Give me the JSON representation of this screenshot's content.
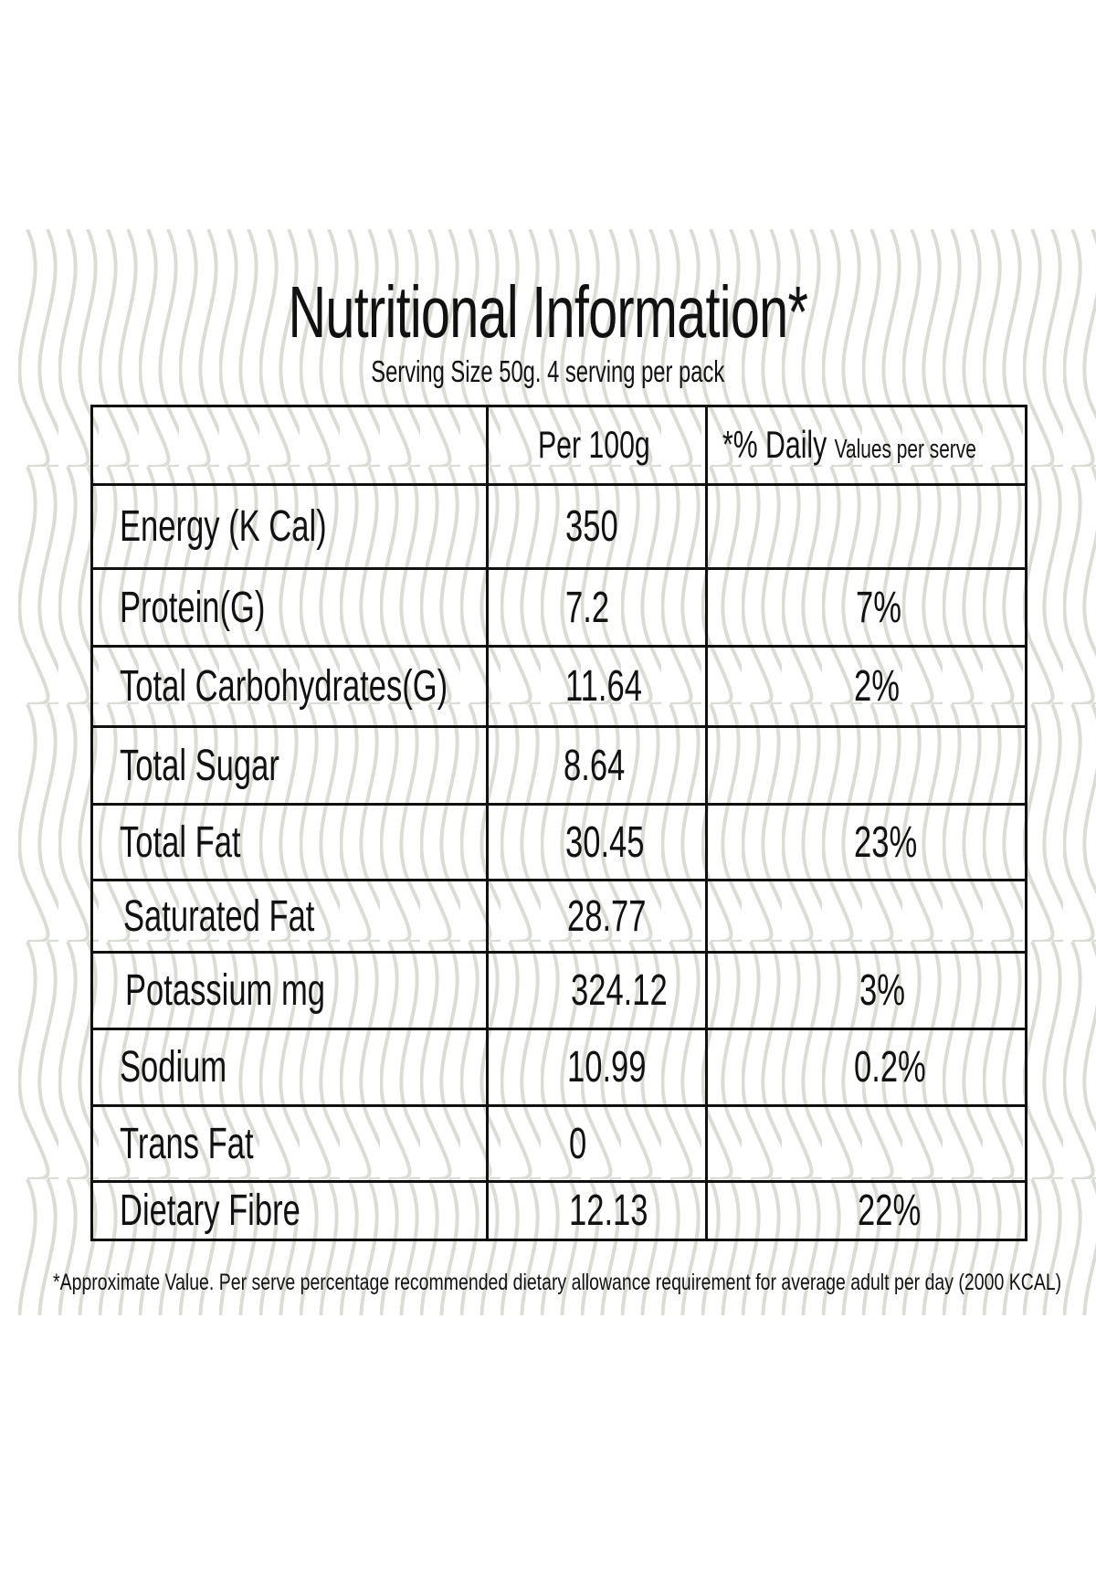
{
  "title": "Nutritional Information*",
  "subtitle": "Serving Size 50g. 4 serving per pack",
  "table": {
    "headers": {
      "per100": "Per 100g",
      "daily_main": "*% Daily",
      "daily_small": "Values per serve"
    },
    "rows": [
      {
        "nutrient": "Energy (K Cal)",
        "per100": "350",
        "daily": ""
      },
      {
        "nutrient": "Protein(G)",
        "per100": "7.2",
        "daily": "7%"
      },
      {
        "nutrient": "Total Carbohydrates(G)",
        "per100": "11.64",
        "daily": "2%"
      },
      {
        "nutrient": "Total Sugar",
        "per100": "8.64",
        "daily": ""
      },
      {
        "nutrient": "Total Fat",
        "per100": "30.45",
        "daily": "23%"
      },
      {
        "nutrient": "Saturated Fat",
        "per100": "28.77",
        "daily": ""
      },
      {
        "nutrient": "Potassium mg",
        "per100": "324.12",
        "daily": "3%"
      },
      {
        "nutrient": "Sodium",
        "per100": "10.99",
        "daily": "0.2%"
      },
      {
        "nutrient": "Trans Fat",
        "per100": "0",
        "daily": ""
      },
      {
        "nutrient": "Dietary Fibre",
        "per100": "12.13",
        "daily": "22%"
      }
    ]
  },
  "footnote": "*Approximate Value. Per serve percentage recommended dietary allowance requirement for average adult per day (2000 KCAL)",
  "colors": {
    "pattern": "#d9ddd6",
    "ink": "#111111",
    "background": "#ffffff"
  }
}
